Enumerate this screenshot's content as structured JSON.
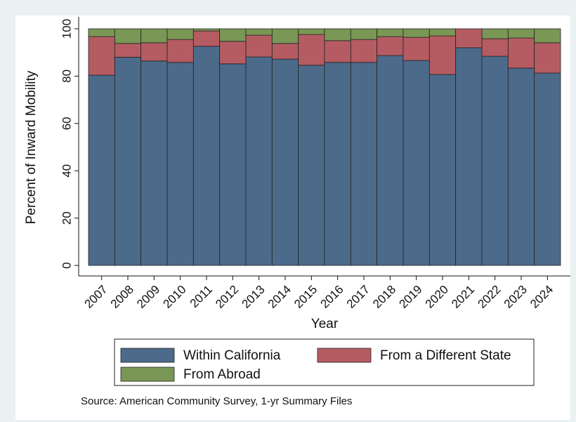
{
  "chart_data": {
    "type": "stacked-bar",
    "y_label": "Percent of Inward Mobility",
    "x_label": "Year",
    "note": "Source: American Community Survey, 1-yr Summary Files",
    "categories": [
      "2007",
      "2008",
      "2009",
      "2010",
      "2011",
      "2012",
      "2013",
      "2014",
      "2015",
      "2016",
      "2017",
      "2018",
      "2019",
      "2020",
      "2021",
      "2022",
      "2023",
      "2024"
    ],
    "series": [
      {
        "name": "Within California",
        "color": "#4c6b8b",
        "values": [
          80.4,
          88.0,
          86.4,
          85.8,
          92.6,
          85.2,
          88.1,
          87.2,
          84.6,
          85.8,
          85.8,
          88.7,
          86.6,
          80.7,
          92.0,
          88.4,
          83.4,
          81.3
        ]
      },
      {
        "name": "From a Different State",
        "color": "#b55c63",
        "values": [
          16.3,
          5.8,
          7.7,
          9.7,
          6.5,
          9.5,
          9.2,
          6.6,
          13.0,
          9.2,
          9.7,
          8.0,
          9.8,
          16.3,
          8.0,
          7.4,
          12.7,
          12.8
        ]
      },
      {
        "name": "From Abroad",
        "color": "#7a9755",
        "values": [
          3.3,
          6.2,
          5.9,
          4.5,
          0.9,
          5.3,
          2.7,
          6.2,
          2.4,
          5.0,
          4.5,
          3.3,
          3.6,
          3.0,
          0.0,
          4.2,
          3.9,
          5.9
        ]
      }
    ],
    "ylim": [
      0,
      100
    ],
    "yticks": [
      0,
      20,
      40,
      60,
      80,
      100
    ],
    "grid": false
  }
}
